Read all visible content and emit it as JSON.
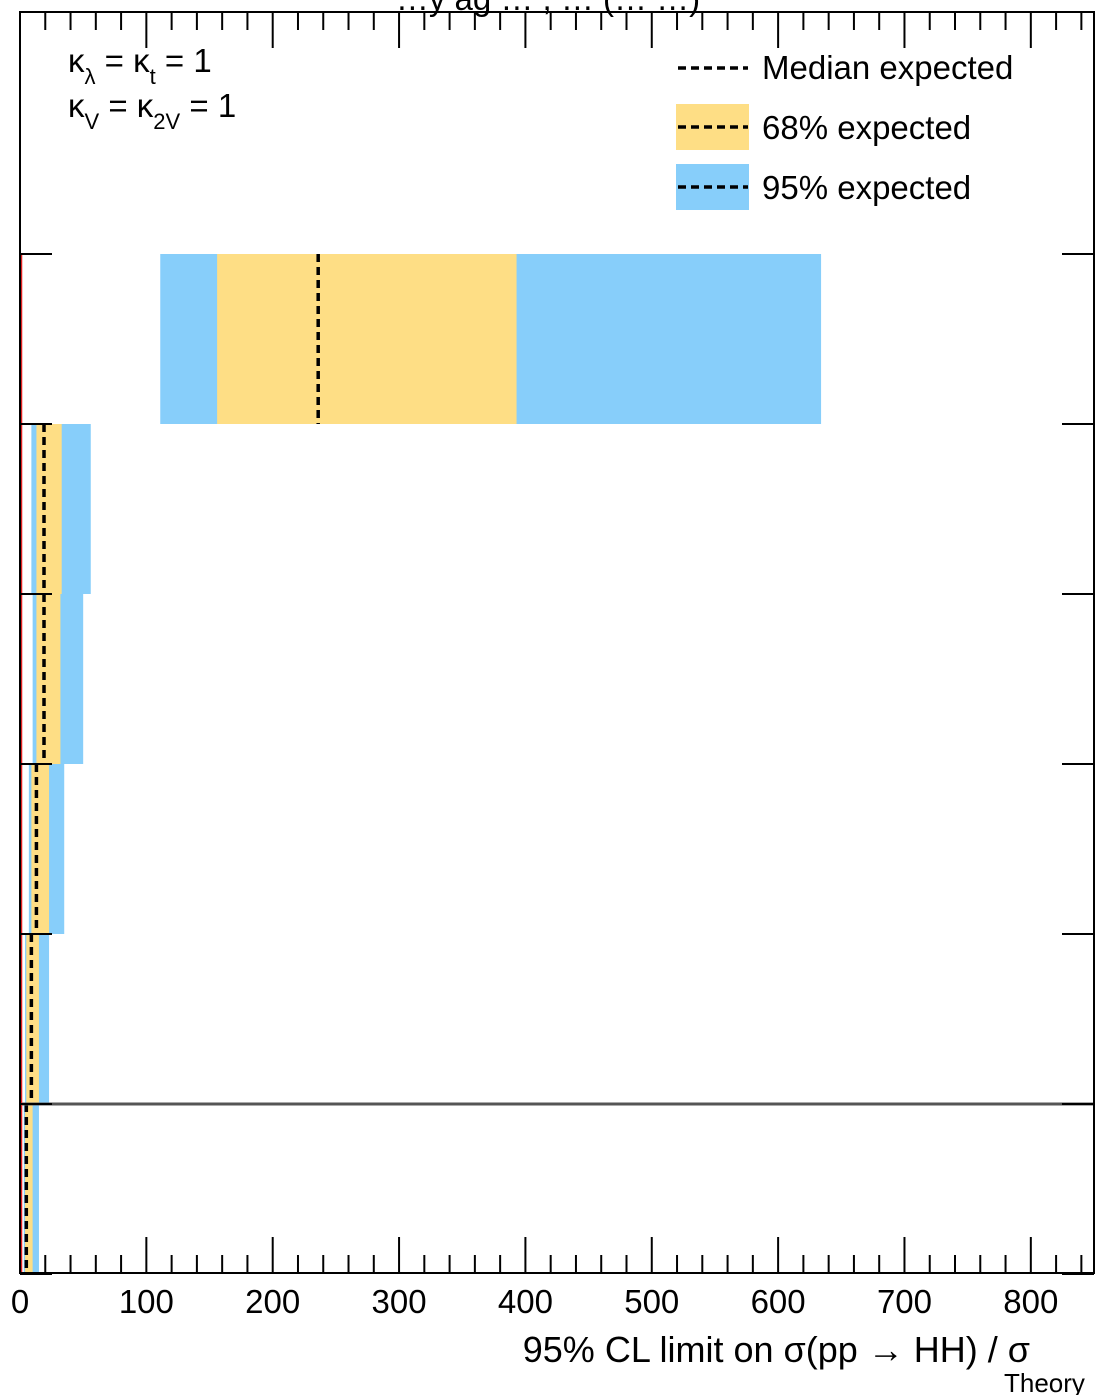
{
  "chart_data": {
    "type": "bar",
    "title": "",
    "header_text": "…y ag … , … (… …)",
    "xlabel": {
      "prefix": "95% CL limit on σ(pp → HH) / σ",
      "subscript": "Theory"
    },
    "ylabel": "",
    "xlim": [
      0,
      850
    ],
    "x_major_ticks": [
      0,
      100,
      200,
      300,
      400,
      500,
      600,
      700,
      800
    ],
    "x_tick_labels": [
      "0",
      "100",
      "200",
      "300",
      "400",
      "500",
      "600",
      "700",
      "800"
    ],
    "x_minor_step": 20,
    "grid": false,
    "rows": [
      {
        "index": 0,
        "lo95": 111,
        "lo68": 156,
        "median": 236,
        "hi68": 393,
        "hi95": 634
      },
      {
        "index": 1,
        "lo95": 9,
        "lo68": 13,
        "median": 19,
        "hi68": 33,
        "hi95": 56
      },
      {
        "index": 2,
        "lo95": 10,
        "lo68": 13,
        "median": 19,
        "hi68": 32,
        "hi95": 50
      },
      {
        "index": 3,
        "lo95": 7,
        "lo68": 9,
        "median": 13,
        "hi68": 23,
        "hi95": 35
      },
      {
        "index": 4,
        "lo95": 4,
        "lo68": 5,
        "median": 9,
        "hi68": 15,
        "hi95": 23
      },
      {
        "index": 5,
        "lo95": 3,
        "lo68": 4,
        "median": 5,
        "hi68": 10,
        "hi95": 15
      }
    ],
    "separator_after_row": 4,
    "theory_line_value": 1,
    "annotations": {
      "line1": {
        "a": "κ",
        "a_sub": "λ",
        "b": " = κ",
        "b_sub": "t",
        "c": " = 1"
      },
      "line2": {
        "a": "κ",
        "a_sub": "V",
        "b": " = κ",
        "b_sub": "2V",
        "c": " = 1"
      }
    },
    "legend": {
      "placement": "top-right",
      "entries": [
        {
          "label": "Median expected",
          "style": "dashed-line"
        },
        {
          "label": "68% expected",
          "style": "band-68"
        },
        {
          "label": "95% expected",
          "style": "band-95"
        }
      ]
    },
    "colors": {
      "band68": "#fede85",
      "band95": "#87cefa",
      "median": "#000000",
      "theory_line": "#e02020",
      "separator": "#555555",
      "frame": "#000000"
    }
  }
}
